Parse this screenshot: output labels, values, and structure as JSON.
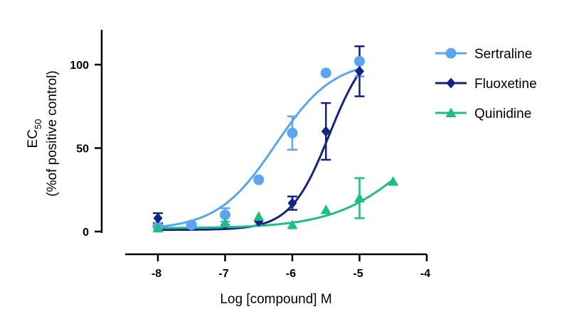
{
  "chart_data": {
    "type": "scatter",
    "xlabel": "Log [compound] M",
    "ylabel_main": "EC",
    "ylabel_sub": "50",
    "ylabel_line2": "(%of positive control)",
    "xlim": [
      -8.5,
      -4
    ],
    "ylim": [
      -8,
      120
    ],
    "x_ticks": [
      -8,
      -7,
      -6,
      -5,
      -4
    ],
    "x_tick_labels": [
      "-8",
      "-7",
      "-6",
      "-5",
      "-4"
    ],
    "y_ticks": [
      0,
      50,
      100
    ],
    "y_tick_labels": [
      "0",
      "50",
      "100"
    ],
    "legend_position": "top-right",
    "series": [
      {
        "name": "Sertraline",
        "color": "#5aa5ee",
        "marker": "circle",
        "x": [
          -8,
          -7.5,
          -7,
          -6.5,
          -6,
          -5.5,
          -5
        ],
        "y": [
          3,
          4,
          10,
          31,
          59,
          95,
          102
        ],
        "err": [
          0,
          0,
          4,
          0,
          10,
          0,
          9
        ],
        "curve": {
          "bottom": 1,
          "top": 103,
          "logEC50": -6.25,
          "hill": 1.0
        }
      },
      {
        "name": "Fluoxetine",
        "color": "#16237e",
        "marker": "diamond",
        "x": [
          -8,
          -7,
          -6.5,
          -6,
          -5.5,
          -5
        ],
        "y": [
          8,
          4,
          6,
          17,
          60,
          96
        ],
        "err": [
          3,
          0,
          0,
          4,
          17,
          15
        ],
        "curve": {
          "bottom": 1,
          "top": 115,
          "logEC50": -5.45,
          "hill": 1.5
        }
      },
      {
        "name": "Quinidine",
        "color": "#1dbd85",
        "marker": "triangle",
        "x": [
          -8,
          -7,
          -6.5,
          -6,
          -5.5,
          -5,
          -4.5
        ],
        "y": [
          2,
          5,
          9,
          4,
          13,
          20,
          30
        ],
        "err": [
          0,
          0,
          0,
          0,
          0,
          12,
          0
        ],
        "curve": {
          "bottom": 2,
          "top": 80,
          "logEC50": -4.2,
          "hill": 0.75
        }
      }
    ]
  }
}
